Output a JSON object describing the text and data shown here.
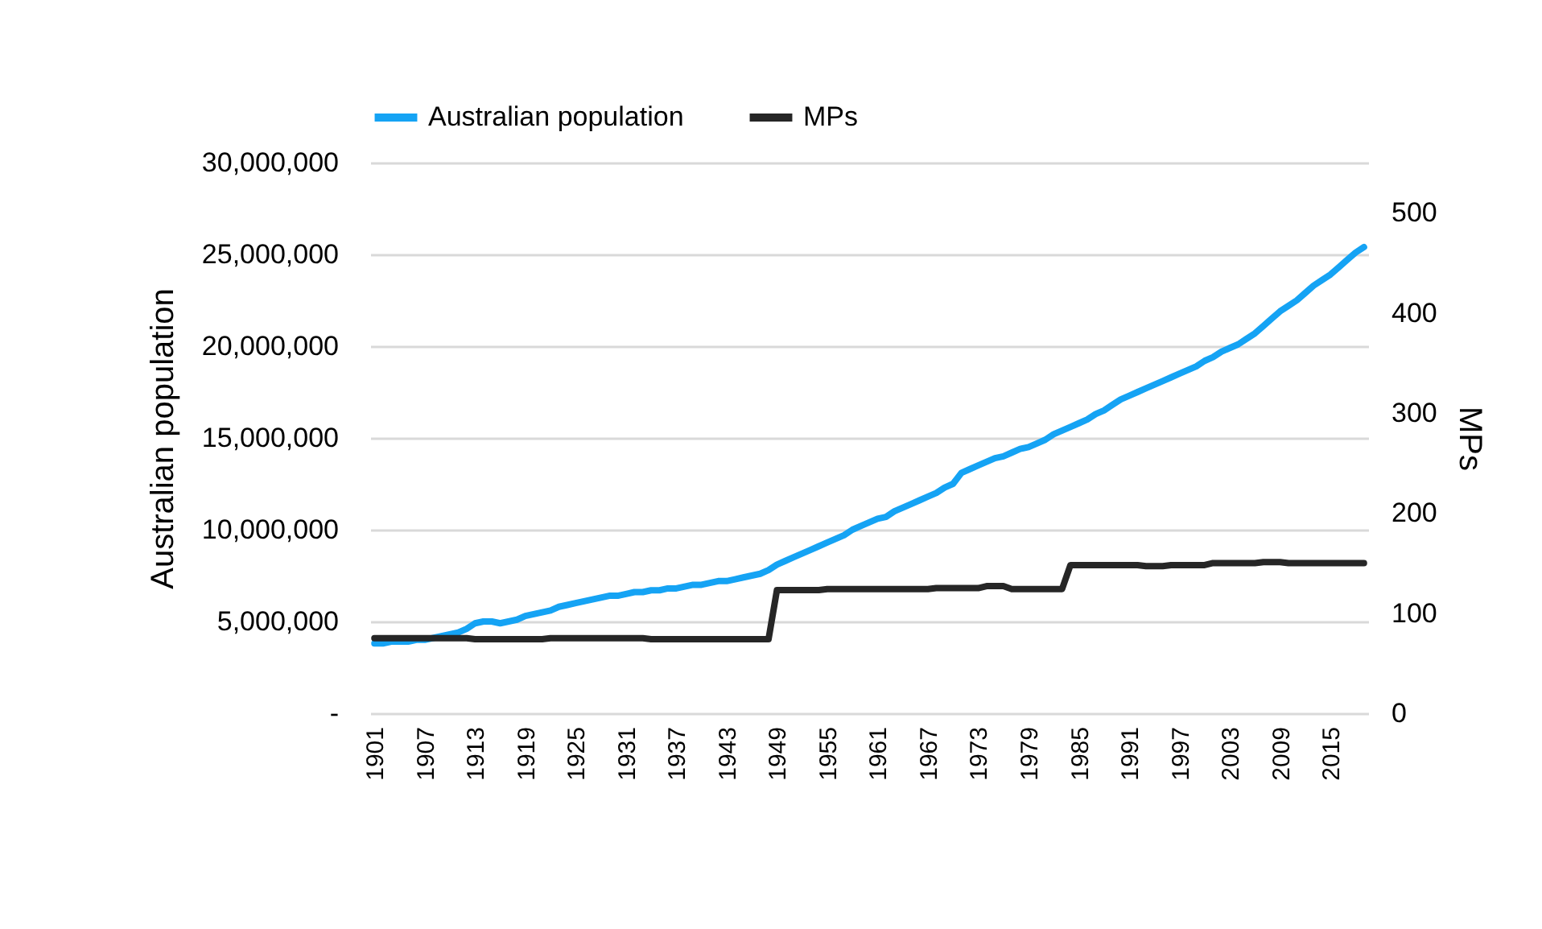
{
  "chart_data": {
    "type": "line",
    "categories": [
      "1901",
      null,
      null,
      null,
      null,
      null,
      "1907",
      null,
      null,
      null,
      null,
      null,
      "1913",
      null,
      null,
      null,
      null,
      null,
      "1919",
      null,
      null,
      null,
      null,
      null,
      "1925",
      null,
      null,
      null,
      null,
      null,
      "1931",
      null,
      null,
      null,
      null,
      null,
      "1937",
      null,
      null,
      null,
      null,
      null,
      "1943",
      null,
      null,
      null,
      null,
      null,
      "1949",
      null,
      null,
      null,
      null,
      null,
      "1955",
      null,
      null,
      null,
      null,
      null,
      "1961",
      null,
      null,
      null,
      null,
      null,
      "1967",
      null,
      null,
      null,
      null,
      null,
      "1973",
      null,
      null,
      null,
      null,
      null,
      "1979",
      null,
      null,
      null,
      null,
      null,
      "1985",
      null,
      null,
      null,
      null,
      null,
      "1991",
      null,
      null,
      null,
      null,
      null,
      "1997",
      null,
      null,
      null,
      null,
      null,
      "2003",
      null,
      null,
      null,
      null,
      null,
      "2009",
      null,
      null,
      null,
      null,
      null,
      "2015",
      null,
      null,
      null,
      null
    ],
    "series": [
      {
        "name": "Australian population",
        "color": "#15a3f4",
        "values": [
          3800000,
          3800000,
          3900000,
          3900000,
          3900000,
          4000000,
          4000000,
          4100000,
          4200000,
          4300000,
          4400000,
          4600000,
          4900000,
          5000000,
          5000000,
          4900000,
          5000000,
          5100000,
          5300000,
          5400000,
          5500000,
          5600000,
          5800000,
          5900000,
          6000000,
          6100000,
          6200000,
          6300000,
          6400000,
          6400000,
          6500000,
          6600000,
          6600000,
          6700000,
          6700000,
          6800000,
          6800000,
          6900000,
          7000000,
          7000000,
          7100000,
          7200000,
          7200000,
          7300000,
          7400000,
          7500000,
          7600000,
          7800000,
          8100000,
          8300000,
          8500000,
          8700000,
          8900000,
          9100000,
          9300000,
          9500000,
          9700000,
          10000000,
          10200000,
          10400000,
          10600000,
          10700000,
          11000000,
          11200000,
          11400000,
          11600000,
          11800000,
          12000000,
          12300000,
          12500000,
          13100000,
          13300000,
          13500000,
          13700000,
          13900000,
          14000000,
          14200000,
          14400000,
          14500000,
          14700000,
          14900000,
          15200000,
          15400000,
          15600000,
          15800000,
          16000000,
          16300000,
          16500000,
          16800000,
          17100000,
          17300000,
          17500000,
          17700000,
          17900000,
          18100000,
          18300000,
          18500000,
          18700000,
          18900000,
          19200000,
          19400000,
          19700000,
          19900000,
          20100000,
          20400000,
          20700000,
          21100000,
          21500000,
          21900000,
          22200000,
          22500000,
          22900000,
          23300000,
          23600000,
          23900000,
          24300000,
          24700000,
          25100000,
          25400000
        ]
      },
      {
        "name": "MPs",
        "color": "#262626",
        "axis": "y2",
        "values": [
          75,
          75,
          75,
          75,
          75,
          75,
          75,
          75,
          75,
          75,
          75,
          75,
          74,
          74,
          74,
          74,
          74,
          74,
          74,
          74,
          74,
          75,
          75,
          75,
          75,
          75,
          75,
          75,
          75,
          75,
          75,
          75,
          75,
          74,
          74,
          74,
          74,
          74,
          74,
          74,
          74,
          74,
          74,
          74,
          74,
          74,
          74,
          74,
          123,
          123,
          123,
          123,
          123,
          123,
          124,
          124,
          124,
          124,
          124,
          124,
          124,
          124,
          124,
          124,
          124,
          124,
          124,
          125,
          125,
          125,
          125,
          125,
          125,
          127,
          127,
          127,
          124,
          124,
          124,
          124,
          124,
          124,
          124,
          148,
          148,
          148,
          148,
          148,
          148,
          148,
          148,
          148,
          147,
          147,
          147,
          148,
          148,
          148,
          148,
          148,
          150,
          150,
          150,
          150,
          150,
          150,
          151,
          151,
          151,
          150,
          150,
          150,
          150,
          150,
          150,
          150,
          150,
          150,
          150
        ]
      }
    ],
    "ylabel": "Australian population",
    "y2label": "MPs",
    "ylim": [
      0,
      30000000
    ],
    "yticks": [
      {
        "value": 0,
        "label": "-"
      },
      {
        "value": 5000000,
        "label": "5,000,000"
      },
      {
        "value": 10000000,
        "label": "10,000,000"
      },
      {
        "value": 15000000,
        "label": "15,000,000"
      },
      {
        "value": 20000000,
        "label": "20,000,000"
      },
      {
        "value": 25000000,
        "label": "25,000,000"
      },
      {
        "value": 30000000,
        "label": "30,000,000"
      }
    ],
    "y2lim": [
      0,
      550
    ],
    "y2ticks": [
      0,
      100,
      200,
      300,
      400,
      500
    ],
    "grid": "y",
    "legend": "top",
    "line_style": "solid",
    "marker": "none"
  }
}
